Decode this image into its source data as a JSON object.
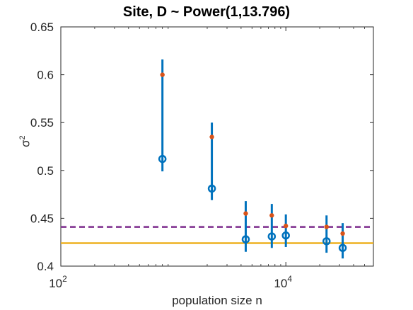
{
  "chart_data": {
    "type": "scatter",
    "title": "Site, D  ~ Power(1,13.796)",
    "xlabel": "population size n",
    "ylabel": "σ",
    "ylabel_superscript": "2",
    "xscale": "log",
    "xlim": [
      100,
      60000
    ],
    "ylim": [
      0.4,
      0.65
    ],
    "yticks": [
      "0.4",
      "0.45",
      "0.5",
      "0.55",
      "0.6",
      "0.65"
    ],
    "xticks": [
      {
        "base": "10",
        "exp": "2"
      },
      {
        "base": "10",
        "exp": "4"
      }
    ],
    "grid": false,
    "series": [
      {
        "marker": "filled-dot",
        "color": "#D95319",
        "x": [
          800,
          2200,
          4400,
          7500,
          10000,
          23000,
          32000
        ],
        "y": [
          0.6,
          0.535,
          0.455,
          0.453,
          0.442,
          0.441,
          0.434
        ]
      },
      {
        "marker": "open-circle",
        "color": "#0072BD",
        "x": [
          800,
          2200,
          4400,
          7500,
          10000,
          23000,
          32000
        ],
        "y": [
          0.512,
          0.481,
          0.428,
          0.431,
          0.432,
          0.426,
          0.419
        ],
        "err_low": [
          0.499,
          0.469,
          0.415,
          0.419,
          0.42,
          0.414,
          0.408
        ],
        "err_high": [
          0.616,
          0.55,
          0.468,
          0.465,
          0.454,
          0.453,
          0.445
        ]
      }
    ],
    "hlines": [
      {
        "y": 0.441,
        "style": "dashed",
        "color": "#7E2F8E"
      },
      {
        "y": 0.424,
        "style": "solid",
        "color": "#EDB120"
      }
    ]
  }
}
